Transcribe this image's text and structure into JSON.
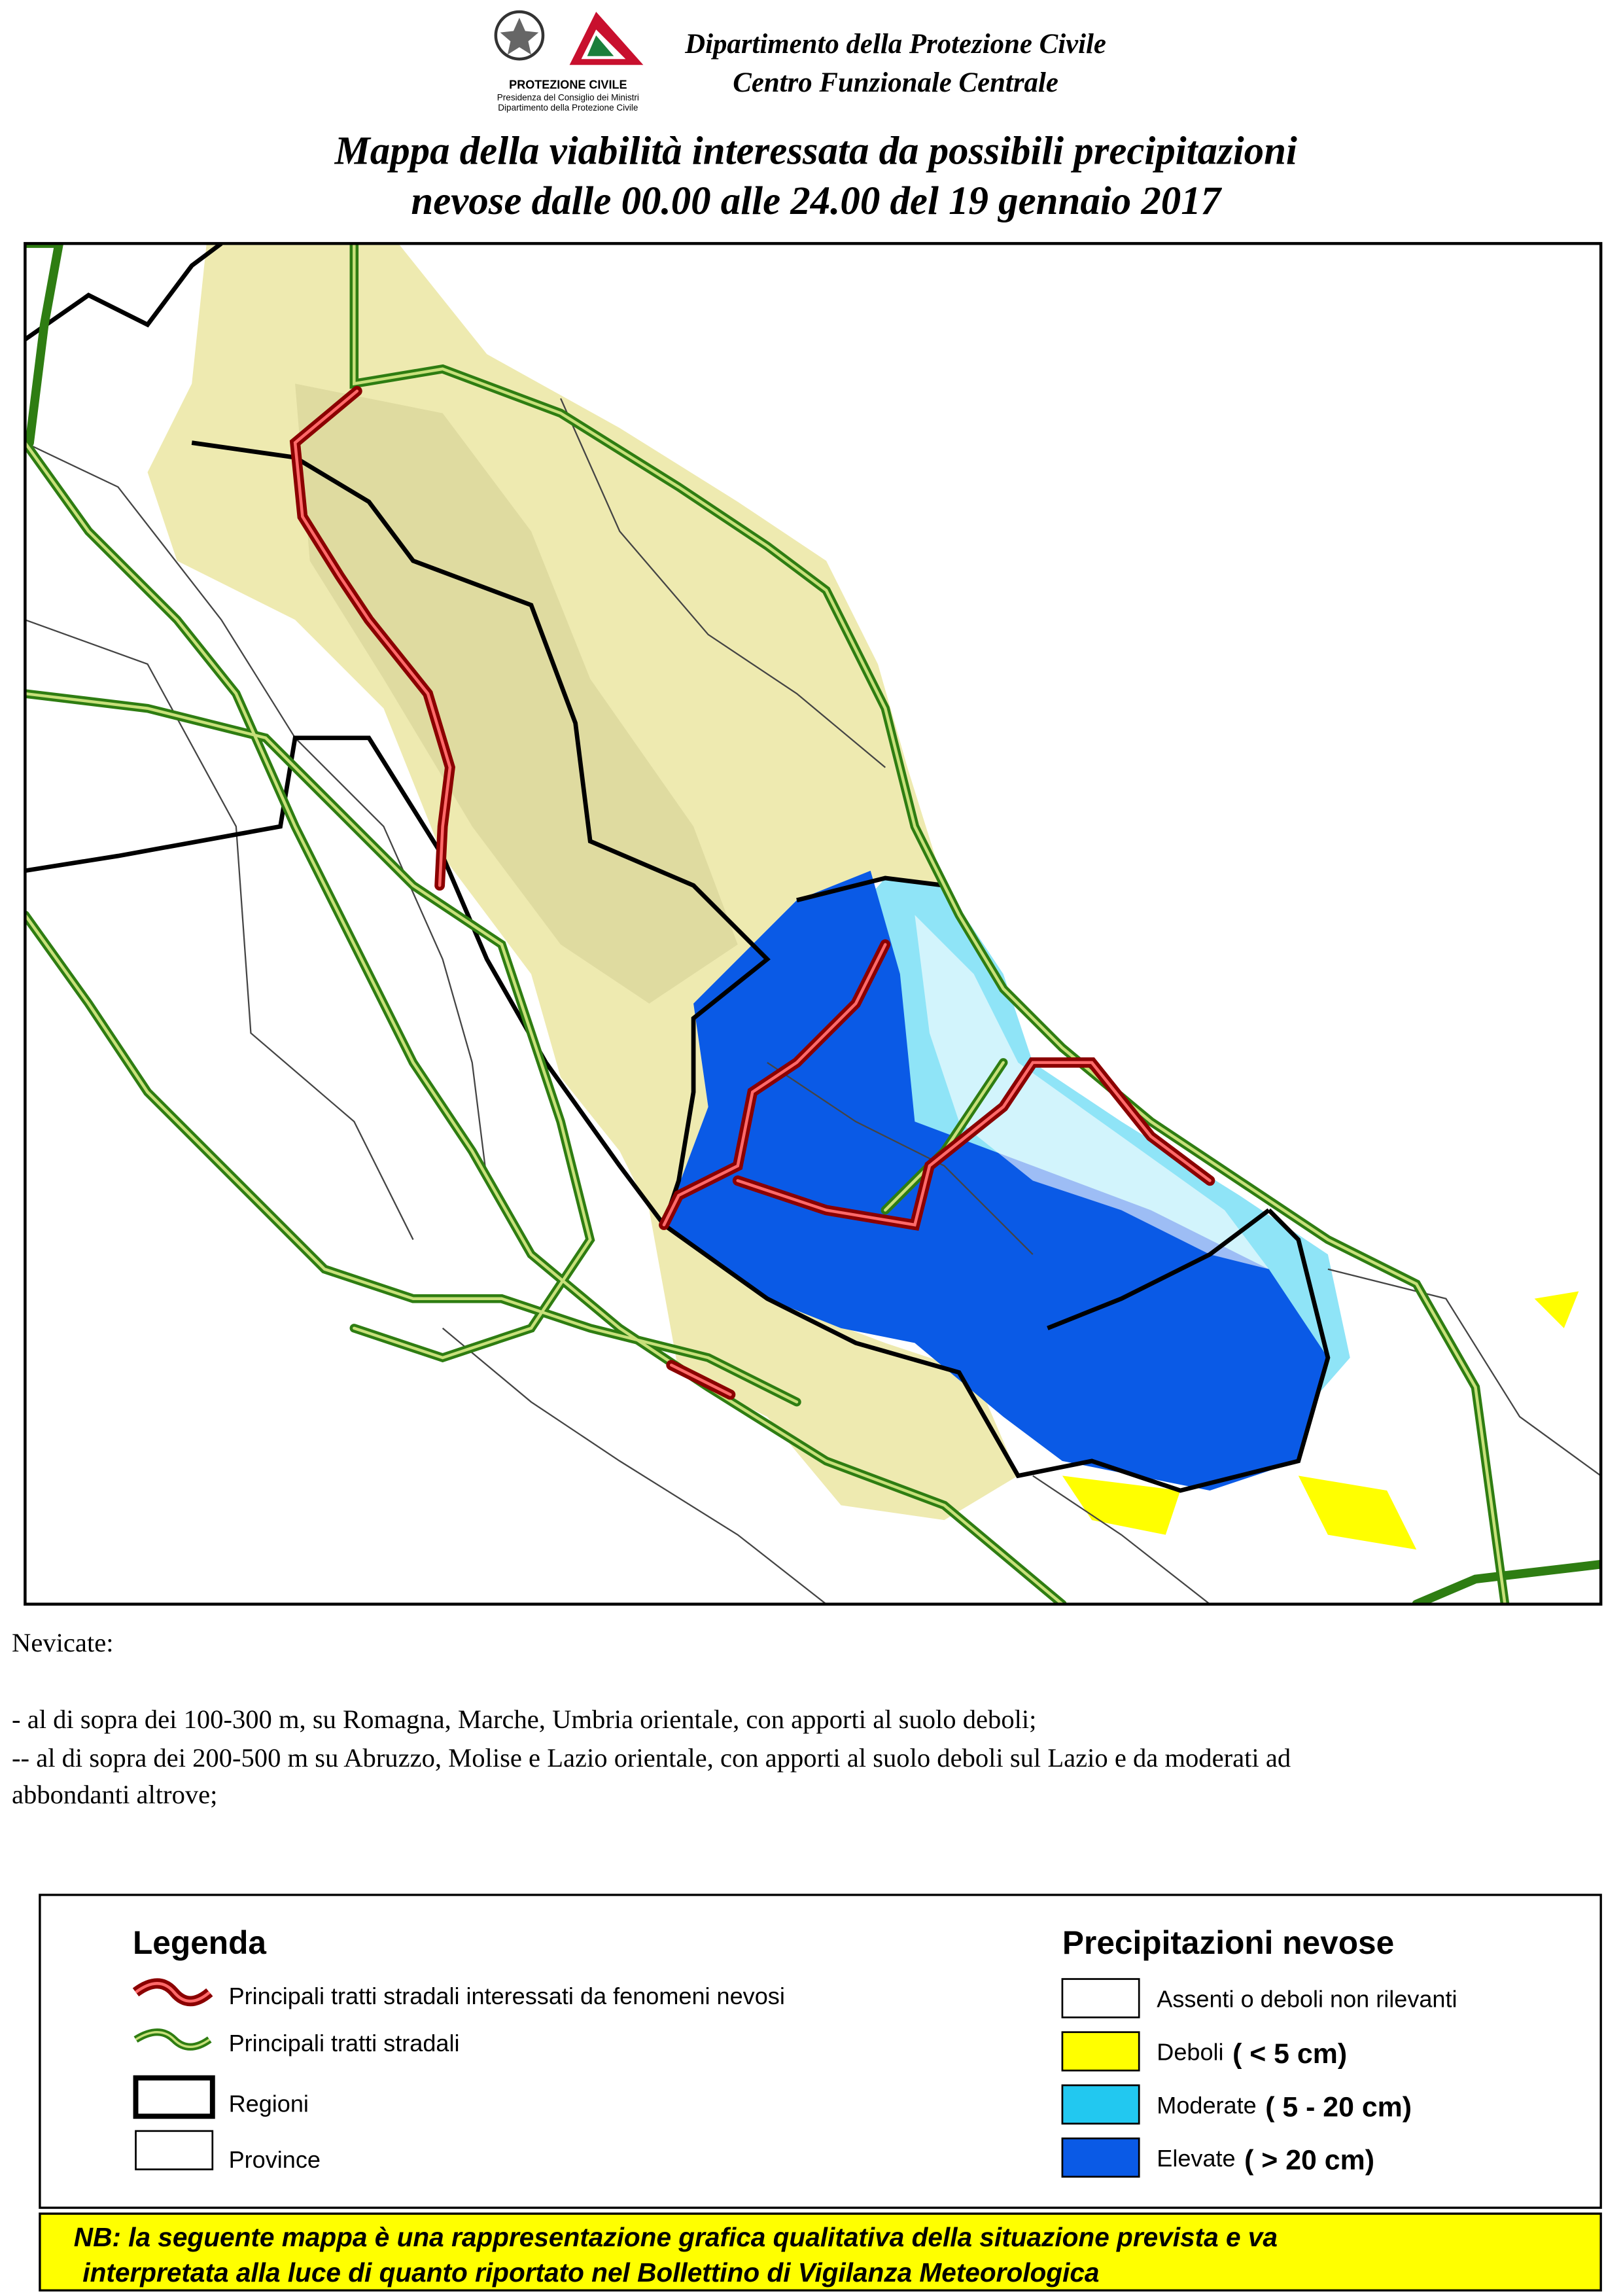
{
  "header": {
    "agency": "Dipartimento della Protezione Civile",
    "unit": "Centro Funzionale Centrale",
    "logo_lines": [
      "PROTEZIONE CIVILE",
      "Presidenza del Consiglio dei Ministri",
      "Dipartimento della Protezione Civile"
    ]
  },
  "title": [
    "Mappa della viabilità interessata da possibili precipitazioni",
    "nevose dalle 00.00 alle 24.00 del 19 gennaio 2017"
  ],
  "description": {
    "heading": "Nevicate:",
    "lines": [
      "- al di sopra dei 100-300 m, su Romagna, Marche, Umbria orientale, con apporti al suolo deboli;",
      "-- al di sopra dei 200-500 m su Abruzzo, Molise e Lazio orientale, con apporti al suolo deboli sul Lazio e da moderati ad",
      "abbondanti altrove;"
    ]
  },
  "legend": {
    "title": "Legenda",
    "items": [
      "Principali tratti stradali interessati da fenomeni nevosi",
      "Principali tratti stradali",
      "Regioni",
      "Province"
    ]
  },
  "snowfall": {
    "title": "Precipitazioni nevose",
    "items": [
      {
        "label": "Assenti o deboli non rilevanti",
        "color": "#ffffff"
      },
      {
        "label": "Deboli",
        "range": "( < 5 cm)",
        "color": "#ffff00"
      },
      {
        "label": "Moderate",
        "range": "( 5 - 20 cm)",
        "color": "#22c8f0"
      },
      {
        "label": "Elevate",
        "range": "( > 20 cm)",
        "color": "#0a5ae6"
      }
    ]
  },
  "note": [
    "NB: la seguente mappa è una rappresentazione grafica qualitativa della situazione prevista e va",
    "interpretata alla luce di quanto riportato nel Bollettino di Vigilanza Meteorologica"
  ]
}
